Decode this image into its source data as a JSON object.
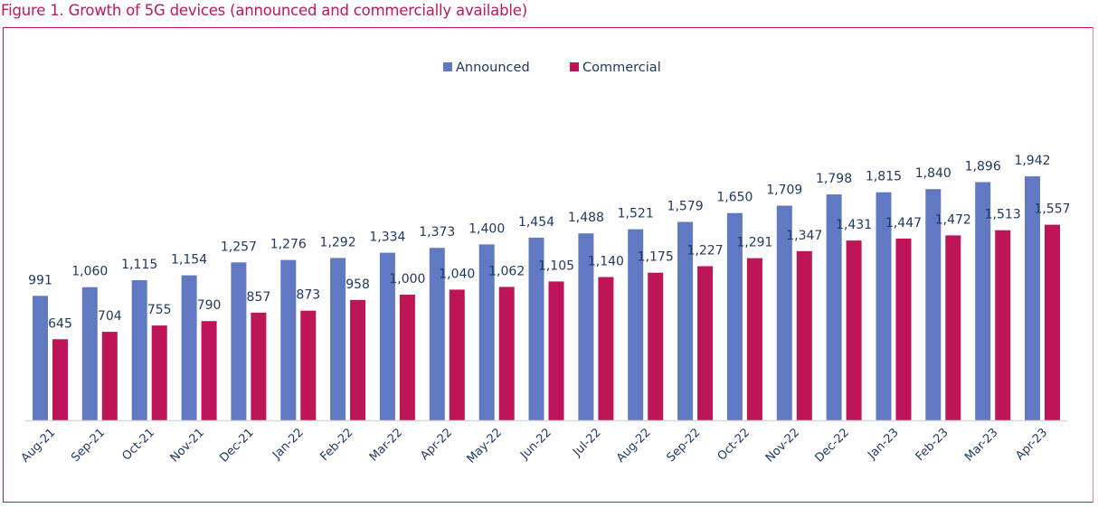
{
  "figure_title": "Figure 1. Growth of 5G devices (announced and commercially available)",
  "colors": {
    "announced": "#6179c2",
    "commercial": "#be1558",
    "title": "#c0175c",
    "text": "#1f3864",
    "axis": "#d9d9d9"
  },
  "chart_data": {
    "type": "bar",
    "title": "Figure 1. Growth of 5G devices (announced and commercially available)",
    "xlabel": "",
    "ylabel": "",
    "ylim": [
      0,
      2626
    ],
    "grid": false,
    "legend_position": "top-center",
    "categories": [
      "Aug-21",
      "Sep-21",
      "Oct-21",
      "Nov-21",
      "Dec-21",
      "Jan-22",
      "Feb-22",
      "Mar-22",
      "Apr-22",
      "May-22",
      "Jun-22",
      "Jul-22",
      "Aug-22",
      "Sep-22",
      "Oct-22",
      "Nov-22",
      "Dec-22",
      "Jan-23",
      "Feb-23",
      "Mar-23",
      "Apr-23"
    ],
    "series": [
      {
        "name": "Announced",
        "color": "#6179c2",
        "values": [
          991,
          1060,
          1115,
          1154,
          1257,
          1276,
          1292,
          1334,
          1373,
          1400,
          1454,
          1488,
          1521,
          1579,
          1650,
          1709,
          1798,
          1815,
          1840,
          1896,
          1942
        ],
        "labels": [
          "991",
          "1,060",
          "1,115",
          "1,154",
          "1,257",
          "1,276",
          "1,292",
          "1,334",
          "1,373",
          "1,400",
          "1,454",
          "1,488",
          "1,521",
          "1,579",
          "1,650",
          "1,709",
          "1,798",
          "1,815",
          "1,840",
          "1,896",
          "1,942"
        ]
      },
      {
        "name": "Commercial",
        "color": "#be1558",
        "values": [
          645,
          704,
          755,
          790,
          857,
          873,
          958,
          1000,
          1040,
          1062,
          1105,
          1140,
          1175,
          1227,
          1291,
          1347,
          1431,
          1447,
          1472,
          1513,
          1557
        ],
        "labels": [
          "645",
          "704",
          "755",
          "790",
          "857",
          "873",
          "958",
          "1,000",
          "1,040",
          "1,062",
          "1,105",
          "1,140",
          "1,175",
          "1,227",
          "1,291",
          "1,347",
          "1,431",
          "1,447",
          "1,472",
          "1,513",
          "1,557"
        ]
      }
    ]
  }
}
